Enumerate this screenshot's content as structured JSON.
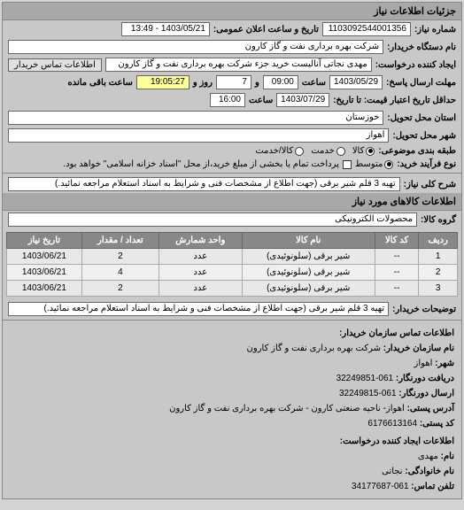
{
  "header": {
    "title": "جزئیات اطلاعات نیاز"
  },
  "top": {
    "need_no_label": "شماره نیاز:",
    "need_no": "1103092544001356",
    "announce_label": "تاریخ و ساعت اعلان عمومی:",
    "announce_value": "1403/05/21 - 13:49"
  },
  "buyer": {
    "org_label": "نام دستگاه خریدار:",
    "org_value": "شرکت بهره برداری نفت و گاز کارون",
    "creator_label": "ایجاد کننده درخواست:",
    "creator_value": "مهدی نجاتی آنالیست خرید جزء شرکت بهره برداری نفت و گاز کارون",
    "contact_btn": "اطلاعات تماس خریدار"
  },
  "deadlines": {
    "reply_deadline_label": "مهلت ارسال پاسخ:",
    "d1": "1403/05/29",
    "t_label": "ساعت",
    "t1": "09:00",
    "and_label": "و",
    "days": "7",
    "roz_label": "روز و",
    "remain": "19:05:27",
    "remain_label": "ساعت باقی مانده",
    "validity_label": "حداقل تاریخ اعتبار قیمت: تا تاریخ:",
    "d2": "1403/07/29",
    "t2": "16:00"
  },
  "delivery": {
    "province_label": "استان محل تحویل:",
    "province": "خوزستان",
    "city_label": "شهر محل تحویل:",
    "city": "اهواز"
  },
  "classification": {
    "subject_label": "طبقه بندی موضوعی:",
    "opt_kala": "کالا",
    "opt_khedmat": "خدمت",
    "opt_kala_khedmat": "کالا/خدمت"
  },
  "process": {
    "label": "نوع فرآیند خرید:",
    "opt_medium": "متوسط",
    "note": "پرداخت تمام یا بخشی از مبلغ خرید،از محل \"اسناد خزانه اسلامی\" خواهد بود."
  },
  "need_desc": {
    "label": "شرح کلی نیاز:",
    "value": "تهیه 3 قلم شیر برقی (جهت اطلاع از مشخصات فنی و شرایط به اسناد استعلام مراجعه نمائید.)"
  },
  "goods_section": {
    "title": "اطلاعات کالاهای مورد نیاز",
    "group_label": "گروه کالا:",
    "group_value": "محصولات الکترونیکی"
  },
  "table": {
    "headers": {
      "row": "ردیف",
      "code": "کد کالا",
      "name": "نام کالا",
      "unit": "واحد شمارش",
      "qty": "تعداد / مقدار",
      "date": "تاریخ نیاز"
    },
    "rows": [
      {
        "row": "1",
        "code": "--",
        "name": "شیر برقی (سلونوئیدی)",
        "unit": "عدد",
        "qty": "2",
        "date": "1403/06/21"
      },
      {
        "row": "2",
        "code": "--",
        "name": "شیر برقی (سلونوئیدی)",
        "unit": "عدد",
        "qty": "4",
        "date": "1403/06/21"
      },
      {
        "row": "3",
        "code": "--",
        "name": "شیر برقی (سلونوئیدی)",
        "unit": "عدد",
        "qty": "2",
        "date": "1403/06/21"
      }
    ]
  },
  "buyer_notes": {
    "label": "توضیحات خریدار:",
    "value": "تهیه 3 قلم شیر برقی (جهت اطلاع از مشخصات فنی و شرایط به اسناد استعلام مراجعه نمائید.)"
  },
  "contact_section": {
    "title": "اطلاعات تماس سازمان خریدار:",
    "lines": {
      "org_label": "نام سازمان خریدار:",
      "org": "شرکت بهره برداری نفت و گاز کارون",
      "city_label": "شهر:",
      "city": "اهواز",
      "recv_label": "دریافت دورنگار:",
      "recv": "061-32249851",
      "send_label": "ارسال دورنگار:",
      "send": "061-32249815",
      "postal_label": "آدرس پستی:",
      "postal": "اهواز- ناحیه صنعتی کارون - شرکت بهره برداری نفت و گاز کارون",
      "postcode_label": "کد پستی:",
      "postcode": "6176613164"
    },
    "creator_title": "اطلاعات ایجاد کننده درخواست:",
    "creator": {
      "name_label": "نام:",
      "name": "مهدی",
      "family_label": "نام خانوادگی:",
      "family": "نجاتی",
      "phone_label": "تلفن تماس:",
      "phone": "061-34177687"
    }
  }
}
